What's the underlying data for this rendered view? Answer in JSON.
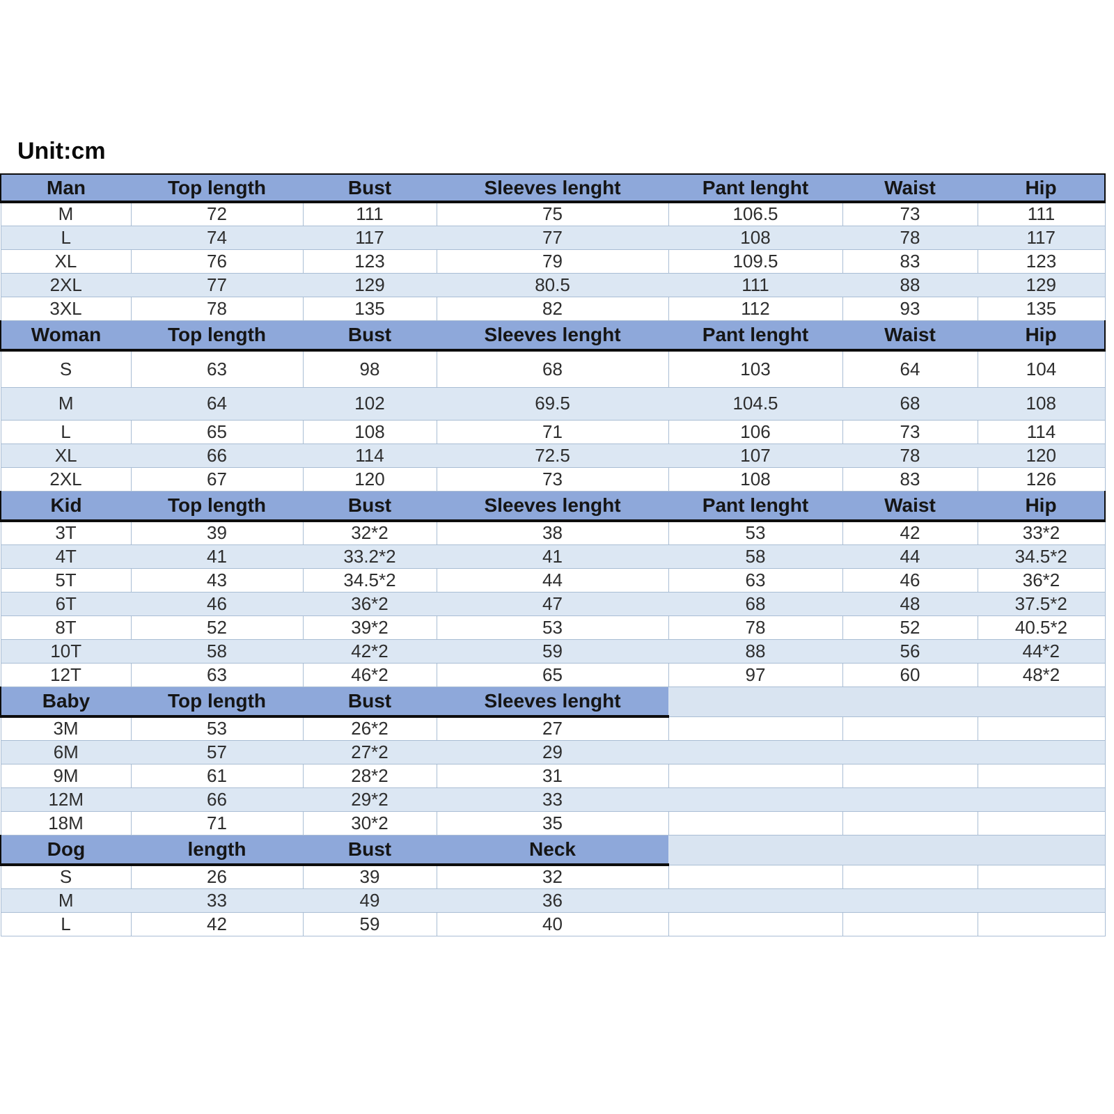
{
  "unit_label": "Unit:cm",
  "colors": {
    "header_fill": "#8ea8da",
    "alt_row_fill": "#dce7f3",
    "filler_fill": "#d9e4f1",
    "grid_line": "#a9bdd4",
    "border_black": "#0d0d0d"
  },
  "chart_data": {
    "type": "table",
    "title": "Unit:cm",
    "layout_hint": "five stacked sections sharing one 7-column grid; Baby and Dog header bands span only the first 4 columns",
    "sections": [
      {
        "id": "man",
        "headers": [
          "Man",
          "Top length",
          "Bust",
          "Sleeves lenght",
          "Pant lenght",
          "Waist",
          "Hip"
        ],
        "rows": [
          [
            "M",
            "72",
            "111",
            "75",
            "106.5",
            "73",
            "111"
          ],
          [
            "L",
            "74",
            "117",
            "77",
            "108",
            "78",
            "117"
          ],
          [
            "XL",
            "76",
            "123",
            "79",
            "109.5",
            "83",
            "123"
          ],
          [
            "2XL",
            "77",
            "129",
            "80.5",
            "111",
            "88",
            "129"
          ],
          [
            "3XL",
            "78",
            "135",
            "82",
            "112",
            "93",
            "135"
          ]
        ]
      },
      {
        "id": "woman",
        "headers": [
          "Woman",
          "Top length",
          "Bust",
          "Sleeves lenght",
          "Pant lenght",
          "Waist",
          "Hip"
        ],
        "rows": [
          [
            "S",
            "63",
            "98",
            "68",
            "103",
            "64",
            "104"
          ],
          [
            "M",
            "64",
            "102",
            "69.5",
            "104.5",
            "68",
            "108"
          ],
          [
            "L",
            "65",
            "108",
            "71",
            "106",
            "73",
            "114"
          ],
          [
            "XL",
            "66",
            "114",
            "72.5",
            "107",
            "78",
            "120"
          ],
          [
            "2XL",
            "67",
            "120",
            "73",
            "108",
            "83",
            "126"
          ]
        ]
      },
      {
        "id": "kid",
        "headers": [
          "Kid",
          "Top length",
          "Bust",
          "Sleeves lenght",
          "Pant lenght",
          "Waist",
          "Hip"
        ],
        "rows": [
          [
            "3T",
            "39",
            "32*2",
            "38",
            "53",
            "42",
            "33*2"
          ],
          [
            "4T",
            "41",
            "33.2*2",
            "41",
            "58",
            "44",
            "34.5*2"
          ],
          [
            "5T",
            "43",
            "34.5*2",
            "44",
            "63",
            "46",
            "36*2"
          ],
          [
            "6T",
            "46",
            "36*2",
            "47",
            "68",
            "48",
            "37.5*2"
          ],
          [
            "8T",
            "52",
            "39*2",
            "53",
            "78",
            "52",
            "40.5*2"
          ],
          [
            "10T",
            "58",
            "42*2",
            "59",
            "88",
            "56",
            "44*2"
          ],
          [
            "12T",
            "63",
            "46*2",
            "65",
            "97",
            "60",
            "48*2"
          ]
        ]
      },
      {
        "id": "baby",
        "headers": [
          "Baby",
          "Top length",
          "Bust",
          "Sleeves lenght"
        ],
        "rows": [
          [
            "3M",
            "53",
            "26*2",
            "27"
          ],
          [
            "6M",
            "57",
            "27*2",
            "29"
          ],
          [
            "9M",
            "61",
            "28*2",
            "31"
          ],
          [
            "12M",
            "66",
            "29*2",
            "33"
          ],
          [
            "18M",
            "71",
            "30*2",
            "35"
          ]
        ]
      },
      {
        "id": "dog",
        "headers": [
          "Dog",
          "length",
          "Bust",
          "Neck"
        ],
        "rows": [
          [
            "S",
            "26",
            "39",
            "32"
          ],
          [
            "M",
            "33",
            "49",
            "36"
          ],
          [
            "L",
            "42",
            "59",
            "40"
          ]
        ]
      }
    ]
  }
}
